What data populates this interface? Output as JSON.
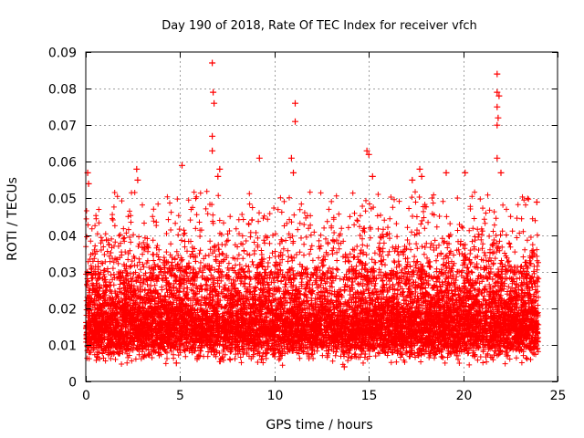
{
  "chart_data": {
    "type": "scatter",
    "title": "Day 190 of 2018, Rate Of TEC Index for receiver vfch",
    "xlabel": "GPS time / hours",
    "ylabel": "ROTI / TECUs",
    "xlim": [
      0,
      25
    ],
    "ylim": [
      0,
      0.09
    ],
    "xticks": [
      0,
      5,
      10,
      15,
      20,
      25
    ],
    "xtick_labels": [
      "0",
      "5",
      "10",
      "15",
      "20",
      "25"
    ],
    "yticks": [
      0,
      0.01,
      0.02,
      0.03,
      0.04,
      0.05,
      0.06,
      0.07,
      0.08,
      0.09
    ],
    "ytick_labels": [
      "0",
      "0.01",
      "0.02",
      "0.03",
      "0.04",
      "0.05",
      "0.06",
      "0.07",
      "0.08",
      "0.09"
    ],
    "grid": true,
    "marker": "+",
    "color": "#ff0000",
    "series": [
      {
        "name": "ROTI",
        "x_range": [
          0,
          24
        ],
        "typical_range": [
          0.008,
          0.03
        ],
        "median": 0.016,
        "min": 0.004,
        "notable_points": [
          {
            "x": 0.1,
            "y": 0.057
          },
          {
            "x": 0.15,
            "y": 0.054
          },
          {
            "x": 2.7,
            "y": 0.058
          },
          {
            "x": 2.75,
            "y": 0.055
          },
          {
            "x": 5.1,
            "y": 0.059
          },
          {
            "x": 6.7,
            "y": 0.087
          },
          {
            "x": 6.75,
            "y": 0.079
          },
          {
            "x": 6.8,
            "y": 0.076
          },
          {
            "x": 6.7,
            "y": 0.067
          },
          {
            "x": 6.7,
            "y": 0.063
          },
          {
            "x": 7.1,
            "y": 0.058
          },
          {
            "x": 7.0,
            "y": 0.056
          },
          {
            "x": 9.2,
            "y": 0.061
          },
          {
            "x": 11.1,
            "y": 0.076
          },
          {
            "x": 11.1,
            "y": 0.071
          },
          {
            "x": 10.9,
            "y": 0.061
          },
          {
            "x": 11.0,
            "y": 0.057
          },
          {
            "x": 14.9,
            "y": 0.063
          },
          {
            "x": 15.0,
            "y": 0.062
          },
          {
            "x": 15.2,
            "y": 0.056
          },
          {
            "x": 17.3,
            "y": 0.055
          },
          {
            "x": 17.7,
            "y": 0.058
          },
          {
            "x": 17.8,
            "y": 0.056
          },
          {
            "x": 19.1,
            "y": 0.057
          },
          {
            "x": 20.1,
            "y": 0.057
          },
          {
            "x": 21.8,
            "y": 0.084
          },
          {
            "x": 21.8,
            "y": 0.079
          },
          {
            "x": 21.9,
            "y": 0.078
          },
          {
            "x": 21.8,
            "y": 0.075
          },
          {
            "x": 21.85,
            "y": 0.072
          },
          {
            "x": 21.8,
            "y": 0.07
          },
          {
            "x": 21.8,
            "y": 0.061
          },
          {
            "x": 22.0,
            "y": 0.057
          },
          {
            "x": 23.9,
            "y": 0.049
          },
          {
            "x": 13.7,
            "y": 0.004
          },
          {
            "x": 4.8,
            "y": 0.005
          }
        ]
      }
    ]
  }
}
